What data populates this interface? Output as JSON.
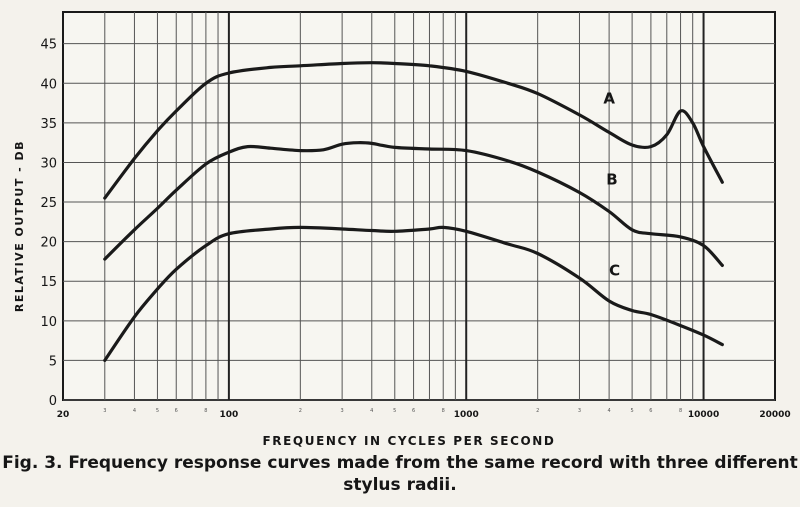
{
  "chart_data": {
    "type": "line",
    "x_scale": "log",
    "xlabel": "FREQUENCY IN CYCLES PER SECOND",
    "ylabel": "RELATIVE OUTPUT - DB",
    "xlim": [
      20,
      20000
    ],
    "ylim": [
      0,
      49
    ],
    "x_tick_labels": [
      {
        "value": 20,
        "label": "20"
      },
      {
        "value": 100,
        "label": "100"
      },
      {
        "value": 1000,
        "label": "1000"
      },
      {
        "value": 10000,
        "label": "10000"
      },
      {
        "value": 20000,
        "label": "20000"
      }
    ],
    "x_minor_ticks": [
      {
        "value": 30,
        "label": "3"
      },
      {
        "value": 40,
        "label": "4"
      },
      {
        "value": 50,
        "label": "5"
      },
      {
        "value": 60,
        "label": "6"
      },
      {
        "value": 80,
        "label": "8"
      },
      {
        "value": 200,
        "label": "2"
      },
      {
        "value": 300,
        "label": "3"
      },
      {
        "value": 400,
        "label": "4"
      },
      {
        "value": 500,
        "label": "5"
      },
      {
        "value": 600,
        "label": "6"
      },
      {
        "value": 800,
        "label": "8"
      },
      {
        "value": 2000,
        "label": "2"
      },
      {
        "value": 3000,
        "label": "3"
      },
      {
        "value": 4000,
        "label": "4"
      },
      {
        "value": 5000,
        "label": "5"
      },
      {
        "value": 6000,
        "label": "6"
      },
      {
        "value": 8000,
        "label": "8"
      }
    ],
    "y_ticks": [
      0,
      5,
      10,
      15,
      20,
      25,
      30,
      35,
      40,
      45
    ],
    "grid": true,
    "series": [
      {
        "name": "A",
        "points": [
          [
            30,
            25.5
          ],
          [
            40,
            30.5
          ],
          [
            50,
            34
          ],
          [
            60,
            36.5
          ],
          [
            80,
            40
          ],
          [
            100,
            41.3
          ],
          [
            150,
            42
          ],
          [
            200,
            42.2
          ],
          [
            300,
            42.5
          ],
          [
            400,
            42.6
          ],
          [
            500,
            42.5
          ],
          [
            700,
            42.2
          ],
          [
            1000,
            41.5
          ],
          [
            1500,
            40
          ],
          [
            2000,
            38.7
          ],
          [
            3000,
            36
          ],
          [
            4000,
            33.8
          ],
          [
            5000,
            32.2
          ],
          [
            6000,
            32
          ],
          [
            7000,
            33.5
          ],
          [
            8000,
            36.5
          ],
          [
            9000,
            35
          ],
          [
            10000,
            32
          ],
          [
            12000,
            27.5
          ]
        ]
      },
      {
        "name": "B",
        "points": [
          [
            30,
            17.8
          ],
          [
            40,
            21.5
          ],
          [
            50,
            24.2
          ],
          [
            60,
            26.5
          ],
          [
            80,
            29.8
          ],
          [
            100,
            31.3
          ],
          [
            120,
            32
          ],
          [
            150,
            31.8
          ],
          [
            200,
            31.5
          ],
          [
            250,
            31.6
          ],
          [
            300,
            32.3
          ],
          [
            350,
            32.5
          ],
          [
            400,
            32.4
          ],
          [
            500,
            31.9
          ],
          [
            700,
            31.7
          ],
          [
            1000,
            31.5
          ],
          [
            1500,
            30.2
          ],
          [
            2000,
            28.8
          ],
          [
            3000,
            26.2
          ],
          [
            4000,
            23.8
          ],
          [
            5000,
            21.5
          ],
          [
            6000,
            21
          ],
          [
            8000,
            20.6
          ],
          [
            10000,
            19.5
          ],
          [
            12000,
            17
          ]
        ]
      },
      {
        "name": "C",
        "points": [
          [
            30,
            5
          ],
          [
            40,
            10.5
          ],
          [
            50,
            14
          ],
          [
            60,
            16.5
          ],
          [
            80,
            19.5
          ],
          [
            100,
            21
          ],
          [
            150,
            21.6
          ],
          [
            200,
            21.8
          ],
          [
            300,
            21.6
          ],
          [
            400,
            21.4
          ],
          [
            500,
            21.3
          ],
          [
            700,
            21.6
          ],
          [
            800,
            21.8
          ],
          [
            1000,
            21.3
          ],
          [
            1500,
            19.7
          ],
          [
            2000,
            18.5
          ],
          [
            3000,
            15.4
          ],
          [
            4000,
            12.5
          ],
          [
            5000,
            11.3
          ],
          [
            6000,
            10.8
          ],
          [
            8000,
            9.4
          ],
          [
            10000,
            8.2
          ],
          [
            12000,
            7
          ]
        ]
      }
    ],
    "annotations": [
      {
        "text": "A",
        "series": "A"
      },
      {
        "text": "B",
        "series": "B"
      },
      {
        "text": "C",
        "series": "C"
      }
    ],
    "caption_line1": "Fig. 3. Frequency response curves made from the same record with three different",
    "caption_line2": "stylus radii."
  },
  "colors": {
    "background": "#f4f2ec",
    "plot_background": "#f7f6f1",
    "grid": "#555555",
    "curve": "#1a1a1a",
    "text": "#161616"
  }
}
